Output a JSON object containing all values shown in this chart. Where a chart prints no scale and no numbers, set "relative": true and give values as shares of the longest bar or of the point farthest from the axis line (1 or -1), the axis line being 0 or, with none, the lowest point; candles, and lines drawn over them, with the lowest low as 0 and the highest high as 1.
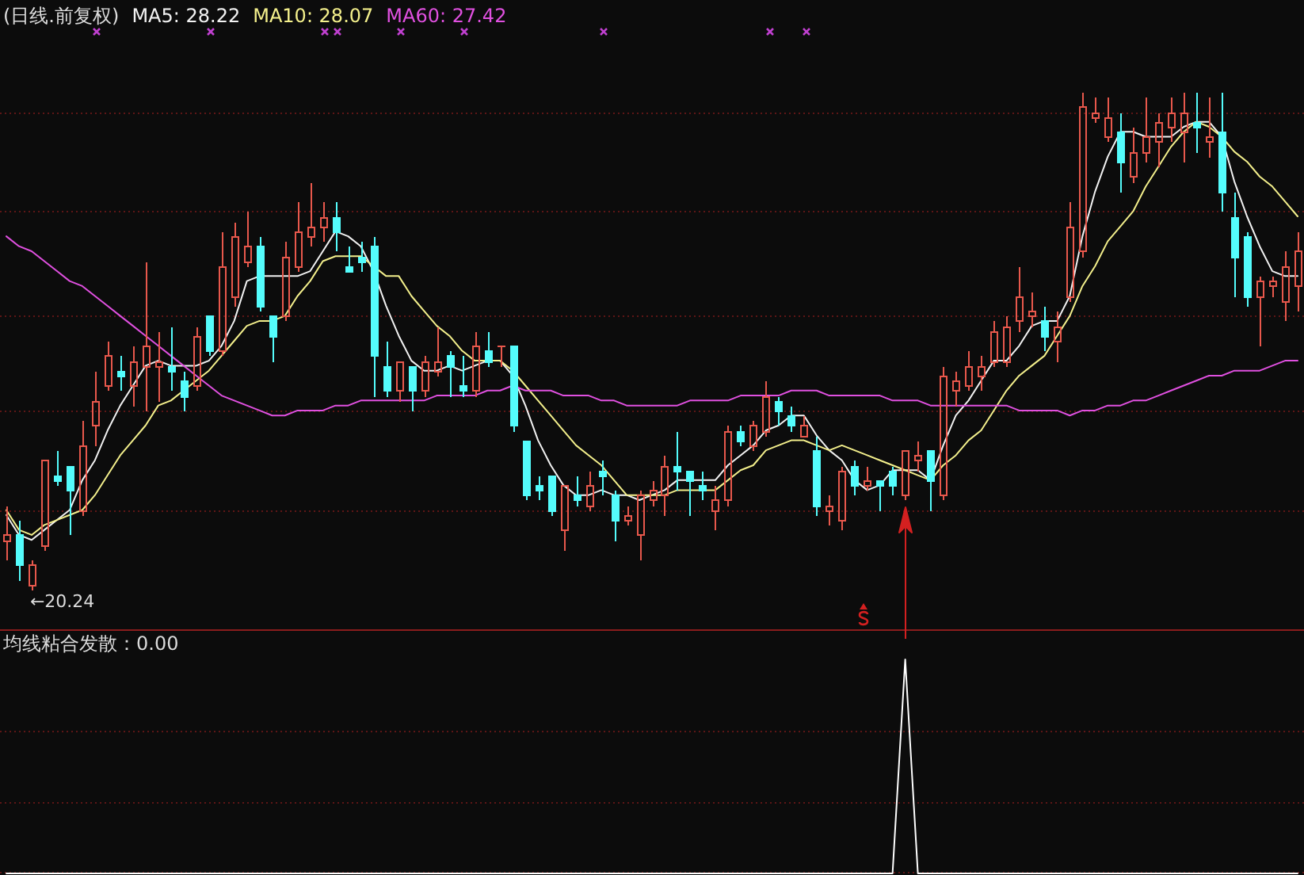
{
  "chart_data": [
    {
      "type": "candlestick",
      "title": "(日线.前复权)",
      "relative": true,
      "annotations": [
        "←20.24"
      ],
      "ref_lines": [
        {
          "axis": "y",
          "value": 0.96,
          "color": "#5e1616",
          "line_style": "dotted"
        },
        {
          "axis": "y",
          "value": 0.76,
          "color": "#5e1616",
          "line_style": "dotted"
        },
        {
          "axis": "y",
          "value": 0.55,
          "color": "#5e1616",
          "line_style": "dotted"
        },
        {
          "axis": "y",
          "value": 0.36,
          "color": "#5e1616",
          "line_style": "dotted"
        },
        {
          "axis": "y",
          "value": 0.16,
          "color": "#5e1616",
          "line_style": "dotted"
        }
      ],
      "categories": [
        null,
        null,
        null,
        null,
        null,
        null,
        null,
        null,
        null,
        null,
        null,
        null,
        null,
        null,
        null,
        null,
        null,
        null,
        null,
        null,
        null,
        null,
        null,
        null,
        null,
        null,
        null,
        null,
        null,
        null,
        null,
        null,
        null,
        null,
        null,
        null,
        null,
        null,
        null,
        null,
        null,
        null,
        null,
        null,
        null,
        null,
        null,
        null,
        null,
        null,
        null,
        null,
        null,
        null,
        null,
        null,
        null,
        null,
        null,
        null,
        null,
        null,
        null,
        null,
        null,
        null,
        null,
        null,
        null,
        null,
        null,
        null,
        null,
        null,
        null,
        null,
        null,
        null,
        null,
        null,
        null,
        null,
        null,
        null,
        null,
        null,
        null,
        null,
        null,
        null,
        null,
        null,
        null,
        null,
        null,
        null,
        null,
        null,
        null,
        null,
        null,
        null,
        null
      ],
      "ohlc": [
        [
          0.1,
          0.17,
          0.06,
          0.11
        ],
        [
          0.11,
          0.14,
          0.02,
          0.05
        ],
        [
          0.01,
          0.06,
          0,
          0.05
        ],
        [
          0.09,
          0.26,
          0.08,
          0.26
        ],
        [
          0.23,
          0.28,
          0.21,
          0.22
        ],
        [
          0.25,
          0.25,
          0.11,
          0.2
        ],
        [
          0.16,
          0.34,
          0.15,
          0.29
        ],
        [
          0.33,
          0.44,
          0.29,
          0.38
        ],
        [
          0.41,
          0.5,
          0.4,
          0.47
        ],
        [
          0.44,
          0.47,
          0.4,
          0.43
        ],
        [
          0.41,
          0.49,
          0.37,
          0.46
        ],
        [
          0.45,
          0.66,
          0.36,
          0.49
        ],
        [
          0.45,
          0.52,
          0.38,
          0.46
        ],
        [
          0.45,
          0.53,
          0.4,
          0.44
        ],
        [
          0.42,
          0.44,
          0.36,
          0.39
        ],
        [
          0.41,
          0.53,
          0.4,
          0.51
        ],
        [
          0.55,
          0.55,
          0.47,
          0.48
        ],
        [
          0.48,
          0.72,
          0.47,
          0.65
        ],
        [
          0.59,
          0.74,
          0.57,
          0.71
        ],
        [
          0.66,
          0.76,
          0.65,
          0.69
        ],
        [
          0.69,
          0.71,
          0.56,
          0.57
        ],
        [
          0.55,
          0.55,
          0.46,
          0.51
        ],
        [
          0.55,
          0.7,
          0.54,
          0.67
        ],
        [
          0.65,
          0.78,
          0.64,
          0.72
        ],
        [
          0.71,
          0.82,
          0.69,
          0.73
        ],
        [
          0.73,
          0.78,
          0.7,
          0.75
        ],
        [
          0.75,
          0.78,
          0.68,
          0.72
        ],
        [
          0.65,
          0.69,
          0.64,
          0.64
        ],
        [
          0.67,
          0.7,
          0.64,
          0.66
        ],
        [
          0.69,
          0.71,
          0.39,
          0.47
        ],
        [
          0.45,
          0.5,
          0.39,
          0.4
        ],
        [
          0.4,
          0.46,
          0.38,
          0.46
        ],
        [
          0.45,
          0.45,
          0.36,
          0.4
        ],
        [
          0.4,
          0.47,
          0.39,
          0.46
        ],
        [
          0.44,
          0.53,
          0.43,
          0.46
        ],
        [
          0.47,
          0.48,
          0.39,
          0.45
        ],
        [
          0.41,
          0.47,
          0.39,
          0.4
        ],
        [
          0.4,
          0.52,
          0.39,
          0.49
        ],
        [
          0.48,
          0.52,
          0.45,
          0.46
        ],
        [
          0.49,
          0.49,
          0.45,
          0.49
        ],
        [
          0.49,
          0.49,
          0.32,
          0.33
        ],
        [
          0.3,
          0.3,
          0.18,
          0.19
        ],
        [
          0.21,
          0.23,
          0.18,
          0.2
        ],
        [
          0.23,
          0.23,
          0.15,
          0.16
        ],
        [
          0.12,
          0.21,
          0.08,
          0.21
        ],
        [
          0.19,
          0.23,
          0.17,
          0.18
        ],
        [
          0.17,
          0.24,
          0.16,
          0.21
        ],
        [
          0.24,
          0.26,
          0.19,
          0.23
        ],
        [
          0.19,
          0.2,
          0.1,
          0.14
        ],
        [
          0.14,
          0.17,
          0.13,
          0.15
        ],
        [
          0.11,
          0.2,
          0.06,
          0.19
        ],
        [
          0.18,
          0.22,
          0.17,
          0.2
        ],
        [
          0.19,
          0.27,
          0.15,
          0.25
        ],
        [
          0.25,
          0.32,
          0.2,
          0.24
        ],
        [
          0.24,
          0.24,
          0.15,
          0.22
        ],
        [
          0.21,
          0.24,
          0.18,
          0.2
        ],
        [
          0.16,
          0.21,
          0.12,
          0.18
        ],
        [
          0.18,
          0.33,
          0.17,
          0.32
        ],
        [
          0.32,
          0.33,
          0.29,
          0.3
        ],
        [
          0.29,
          0.34,
          0.28,
          0.33
        ],
        [
          0.32,
          0.42,
          0.31,
          0.39
        ],
        [
          0.38,
          0.39,
          0.33,
          0.36
        ],
        [
          0.35,
          0.37,
          0.32,
          0.33
        ],
        [
          0.31,
          0.35,
          0.31,
          0.33
        ],
        [
          0.28,
          0.31,
          0.15,
          0.17
        ],
        [
          0.16,
          0.19,
          0.13,
          0.17
        ],
        [
          0.14,
          0.25,
          0.12,
          0.24
        ],
        [
          0.25,
          0.26,
          0.19,
          0.21
        ],
        [
          0.21,
          0.25,
          0.2,
          0.22
        ],
        [
          0.22,
          0.22,
          0.16,
          0.21
        ],
        [
          0.24,
          0.25,
          0.19,
          0.21
        ],
        [
          0.19,
          0.28,
          0.18,
          0.28
        ],
        [
          0.26,
          0.3,
          0.24,
          0.27
        ],
        [
          0.28,
          0.28,
          0.16,
          0.22
        ],
        [
          0.19,
          0.45,
          0.18,
          0.43
        ],
        [
          0.4,
          0.44,
          0.37,
          0.42
        ],
        [
          0.41,
          0.48,
          0.4,
          0.45
        ],
        [
          0.43,
          0.47,
          0.4,
          0.45
        ],
        [
          0.46,
          0.54,
          0.45,
          0.52
        ],
        [
          0.46,
          0.55,
          0.45,
          0.53
        ],
        [
          0.54,
          0.65,
          0.52,
          0.59
        ],
        [
          0.55,
          0.6,
          0.53,
          0.56
        ],
        [
          0.54,
          0.57,
          0.48,
          0.51
        ],
        [
          0.5,
          0.56,
          0.46,
          0.53
        ],
        [
          0.59,
          0.78,
          0.58,
          0.73
        ],
        [
          0.68,
          1,
          0.67,
          0.97
        ],
        [
          0.95,
          0.99,
          0.94,
          0.96
        ],
        [
          0.91,
          0.99,
          0.9,
          0.95
        ],
        [
          0.92,
          0.96,
          0.8,
          0.86
        ],
        [
          0.83,
          0.93,
          0.82,
          0.88
        ],
        [
          0.88,
          0.99,
          0.86,
          0.91
        ],
        [
          0.9,
          0.96,
          0.85,
          0.94
        ],
        [
          0.93,
          0.99,
          0.9,
          0.96
        ],
        [
          0.92,
          1,
          0.86,
          0.96
        ],
        [
          0.94,
          1,
          0.88,
          0.93
        ],
        [
          0.9,
          0.99,
          0.87,
          0.91
        ],
        [
          0.92,
          1,
          0.76,
          0.8
        ],
        [
          0.75,
          0.8,
          0.59,
          0.67
        ],
        [
          0.71,
          0.72,
          0.57,
          0.59
        ],
        [
          0.59,
          0.63,
          0.49,
          0.62
        ],
        [
          0.61,
          0.63,
          0.59,
          0.62
        ],
        [
          0.58,
          0.68,
          0.54,
          0.65
        ],
        [
          0.61,
          0.72,
          0.56,
          0.68
        ]
      ],
      "colors": [
        "#e8584c",
        "#54fcfc",
        "#e8584c",
        "#e8584c",
        "#54fcfc",
        "#54fcfc",
        "#e8584c",
        "#e8584c",
        "#e8584c",
        "#54fcfc",
        "#e8584c",
        "#e8584c",
        "#e8584c",
        "#54fcfc",
        "#54fcfc",
        "#e8584c",
        "#54fcfc",
        "#e8584c",
        "#e8584c",
        "#e8584c",
        "#54fcfc",
        "#54fcfc",
        "#e8584c",
        "#e8584c",
        "#e8584c",
        "#e8584c",
        "#54fcfc",
        "#54fcfc",
        "#54fcfc",
        "#54fcfc",
        "#54fcfc",
        "#e8584c",
        "#54fcfc",
        "#e8584c",
        "#e8584c",
        "#54fcfc",
        "#54fcfc",
        "#e8584c",
        "#54fcfc",
        "#e8584c",
        "#54fcfc",
        "#54fcfc",
        "#54fcfc",
        "#54fcfc",
        "#e8584c",
        "#54fcfc",
        "#e8584c",
        "#54fcfc",
        "#54fcfc",
        "#e8584c",
        "#e8584c",
        "#e8584c",
        "#e8584c",
        "#54fcfc",
        "#54fcfc",
        "#54fcfc",
        "#e8584c",
        "#e8584c",
        "#54fcfc",
        "#e8584c",
        "#e8584c",
        "#54fcfc",
        "#54fcfc",
        "#e8584c",
        "#54fcfc",
        "#e8584c",
        "#e8584c",
        "#54fcfc",
        "#e8584c",
        "#54fcfc",
        "#54fcfc",
        "#e8584c",
        "#e8584c",
        "#54fcfc",
        "#e8584c",
        "#e8584c",
        "#e8584c",
        "#e8584c",
        "#e8584c",
        "#e8584c",
        "#e8584c",
        "#e8584c",
        "#54fcfc",
        "#e8584c",
        "#e8584c",
        "#e8584c",
        "#e8584c",
        "#e8584c",
        "#54fcfc",
        "#e8584c",
        "#e8584c",
        "#e8584c",
        "#e8584c",
        "#e8584c",
        "#54fcfc",
        "#e8584c",
        "#54fcfc",
        "#54fcfc",
        "#54fcfc",
        "#e8584c",
        "#e8584c",
        "#e8584c",
        "#e8584c"
      ],
      "series": [
        {
          "type": "line",
          "name": "MA5: 28.22",
          "color": "#f2f2f2",
          "values": [
            0.15,
            0.11,
            0.1,
            0.12,
            0.14,
            0.16,
            0.22,
            0.26,
            0.32,
            0.37,
            0.41,
            0.45,
            0.46,
            0.45,
            0.45,
            0.45,
            0.46,
            0.49,
            0.54,
            0.62,
            0.63,
            0.63,
            0.63,
            0.63,
            0.64,
            0.68,
            0.72,
            0.71,
            0.69,
            0.64,
            0.57,
            0.51,
            0.46,
            0.44,
            0.44,
            0.45,
            0.44,
            0.45,
            0.46,
            0.46,
            0.43,
            0.37,
            0.3,
            0.25,
            0.21,
            0.19,
            0.19,
            0.2,
            0.19,
            0.19,
            0.18,
            0.19,
            0.2,
            0.22,
            0.22,
            0.22,
            0.22,
            0.25,
            0.27,
            0.29,
            0.32,
            0.33,
            0.35,
            0.35,
            0.31,
            0.28,
            0.26,
            0.22,
            0.2,
            0.21,
            0.24,
            0.24,
            0.24,
            0.22,
            0.29,
            0.35,
            0.38,
            0.42,
            0.46,
            0.46,
            0.49,
            0.53,
            0.54,
            0.54,
            0.59,
            0.71,
            0.8,
            0.87,
            0.92,
            0.92,
            0.91,
            0.91,
            0.91,
            0.93,
            0.94,
            0.94,
            0.91,
            0.82,
            0.75,
            0.69,
            0.64,
            0.63,
            0.63
          ]
        },
        {
          "type": "line",
          "name": "MA10: 28.07",
          "color": "#f4f08c",
          "values": [
            0.16,
            0.12,
            0.11,
            0.13,
            0.14,
            0.15,
            0.16,
            0.19,
            0.23,
            0.27,
            0.3,
            0.33,
            0.37,
            0.38,
            0.4,
            0.42,
            0.44,
            0.47,
            0.5,
            0.53,
            0.54,
            0.54,
            0.55,
            0.59,
            0.62,
            0.66,
            0.67,
            0.67,
            0.67,
            0.65,
            0.63,
            0.63,
            0.59,
            0.56,
            0.53,
            0.51,
            0.48,
            0.46,
            0.46,
            0.46,
            0.44,
            0.41,
            0.38,
            0.35,
            0.32,
            0.29,
            0.27,
            0.25,
            0.22,
            0.19,
            0.19,
            0.19,
            0.19,
            0.2,
            0.2,
            0.2,
            0.2,
            0.22,
            0.24,
            0.25,
            0.28,
            0.29,
            0.3,
            0.3,
            0.29,
            0.28,
            0.29,
            0.28,
            0.27,
            0.26,
            0.25,
            0.24,
            0.23,
            0.22,
            0.25,
            0.27,
            0.3,
            0.32,
            0.36,
            0.4,
            0.43,
            0.45,
            0.47,
            0.51,
            0.55,
            0.61,
            0.65,
            0.7,
            0.73,
            0.76,
            0.81,
            0.85,
            0.89,
            0.92,
            0.94,
            0.93,
            0.91,
            0.88,
            0.86,
            0.83,
            0.81,
            0.78,
            0.75
          ]
        },
        {
          "type": "line",
          "name": "MA60: 27.42",
          "color": "#e050e0",
          "values": [
            0.71,
            0.69,
            0.68,
            0.66,
            0.64,
            0.62,
            0.61,
            0.59,
            0.57,
            0.55,
            0.53,
            0.51,
            0.49,
            0.47,
            0.45,
            0.43,
            0.41,
            0.39,
            0.38,
            0.37,
            0.36,
            0.35,
            0.35,
            0.36,
            0.36,
            0.36,
            0.37,
            0.37,
            0.38,
            0.38,
            0.38,
            0.38,
            0.38,
            0.38,
            0.39,
            0.39,
            0.39,
            0.39,
            0.4,
            0.4,
            0.41,
            0.4,
            0.4,
            0.4,
            0.39,
            0.39,
            0.39,
            0.38,
            0.38,
            0.37,
            0.37,
            0.37,
            0.37,
            0.37,
            0.38,
            0.38,
            0.38,
            0.38,
            0.39,
            0.39,
            0.39,
            0.39,
            0.4,
            0.4,
            0.4,
            0.39,
            0.39,
            0.39,
            0.39,
            0.39,
            0.38,
            0.38,
            0.38,
            0.37,
            0.37,
            0.37,
            0.37,
            0.37,
            0.37,
            0.37,
            0.36,
            0.36,
            0.36,
            0.36,
            0.35,
            0.36,
            0.36,
            0.37,
            0.37,
            0.38,
            0.38,
            0.39,
            0.4,
            0.41,
            0.42,
            0.43,
            0.43,
            0.44,
            0.44,
            0.44,
            0.45,
            0.46,
            0.46
          ]
        }
      ]
    },
    {
      "type": "line",
      "title": "均线粘合发散：0.00",
      "relative": true,
      "color": "#ffffff",
      "ref_lines": [
        {
          "axis": "y",
          "value": 0.67,
          "color": "#5e1616",
          "line_style": "dotted"
        },
        {
          "axis": "y",
          "value": 0.33,
          "color": "#5e1616",
          "line_style": "dotted"
        },
        {
          "axis": "y",
          "value": 0.01,
          "color": "#5e1616",
          "line_style": "dotted"
        }
      ],
      "categories": [
        null,
        null,
        null,
        null,
        null,
        null,
        null,
        null,
        null,
        null,
        null,
        null,
        null,
        null,
        null,
        null,
        null,
        null,
        null,
        null,
        null,
        null,
        null,
        null,
        null,
        null,
        null,
        null,
        null,
        null,
        null,
        null,
        null,
        null,
        null,
        null,
        null,
        null,
        null,
        null,
        null,
        null,
        null,
        null,
        null,
        null,
        null,
        null,
        null,
        null,
        null,
        null,
        null,
        null,
        null,
        null,
        null,
        null,
        null,
        null,
        null,
        null,
        null,
        null,
        null,
        null,
        null,
        null,
        null,
        null,
        null,
        null,
        null,
        null,
        null,
        null,
        null,
        null,
        null,
        null,
        null,
        null,
        null,
        null,
        null,
        null,
        null,
        null,
        null,
        null,
        null,
        null,
        null,
        null,
        null,
        null,
        null,
        null,
        null,
        null,
        null,
        null,
        null
      ],
      "values": [
        0,
        0,
        0,
        0,
        0,
        0,
        0,
        0,
        0,
        0,
        0,
        0,
        0,
        0,
        0,
        0,
        0,
        0,
        0,
        0,
        0,
        0,
        0,
        0,
        0,
        0,
        0,
        0,
        0,
        0,
        0,
        0,
        0,
        0,
        0,
        0,
        0,
        0,
        0,
        0,
        0,
        0,
        0,
        0,
        0,
        0,
        0,
        0,
        0,
        0,
        0,
        0,
        0,
        0,
        0,
        0,
        0,
        0,
        0,
        0,
        0,
        0,
        0,
        0,
        0,
        0,
        0,
        0,
        0,
        0,
        0,
        1,
        0,
        0,
        0,
        0,
        0,
        0,
        0,
        0,
        0,
        0,
        0,
        0,
        0,
        0,
        0,
        0,
        0,
        0,
        0,
        0,
        0,
        0,
        0,
        0,
        0,
        0,
        0,
        0,
        0,
        0,
        0
      ]
    }
  ]
}
